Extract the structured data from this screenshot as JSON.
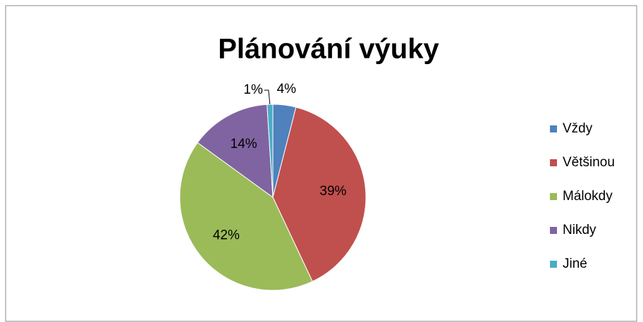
{
  "chart_data": {
    "type": "pie",
    "title": "Plánování výuky",
    "categories": [
      "Vždy",
      "Většinou",
      "Málokdy",
      "Nikdy",
      "Jiné"
    ],
    "values": [
      4,
      39,
      42,
      14,
      1
    ],
    "value_labels": [
      "4%",
      "39%",
      "42%",
      "14%",
      "1%"
    ],
    "colors": [
      "#4f81bd",
      "#c0504d",
      "#9bbb59",
      "#8064a2",
      "#4bacc6"
    ],
    "legend": "right"
  }
}
